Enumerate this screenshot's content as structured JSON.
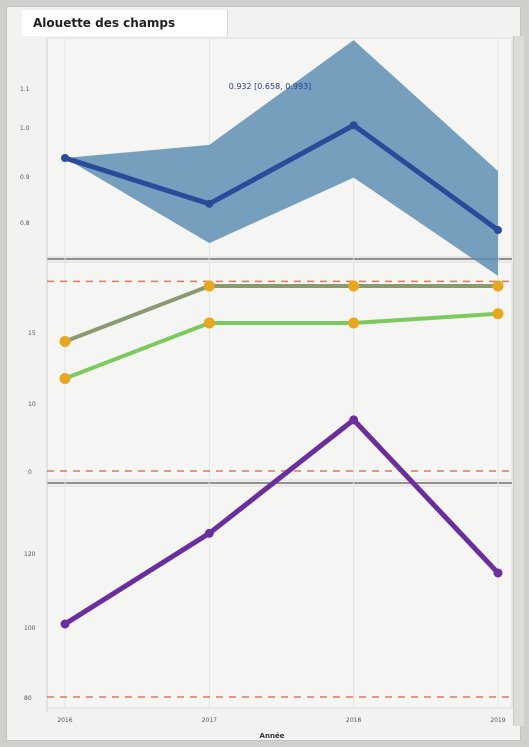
{
  "window": {
    "title": "Alouette des champs"
  },
  "chart_data": [
    {
      "type": "area",
      "title": "",
      "annotation": "0.932 [0.658, 0.993]",
      "x": [
        2016,
        2017,
        2018,
        2019
      ],
      "series": [
        {
          "values": [
            0.95,
            0.88,
            1.0,
            0.84
          ],
          "lower": [
            0.95,
            0.82,
            0.92,
            0.77
          ],
          "upper": [
            0.95,
            0.97,
            1.13,
            0.93
          ]
        }
      ],
      "yticks": [
        "1.1",
        "1.0",
        "0.9",
        "0.8"
      ],
      "colors": {
        "line": "#2a4a9a",
        "band": "#5f8fb4"
      }
    },
    {
      "type": "line",
      "x": [
        2016,
        2017,
        2018,
        2019
      ],
      "series": [
        {
          "values": [
            14,
            20,
            20,
            20
          ],
          "color": "#8a9a6e"
        },
        {
          "values": [
            10,
            16,
            16,
            17
          ],
          "color": "#7cc95e"
        }
      ],
      "yticks": [
        "15",
        "10",
        "0"
      ],
      "reference_lines": [
        20.5,
        0
      ],
      "colors": {
        "marker": "#e8a81c",
        "reference": "#e07a5a"
      }
    },
    {
      "type": "line",
      "x": [
        2016,
        2017,
        2018,
        2019
      ],
      "xlabel": "Année",
      "xticks": [
        "2016",
        "2017",
        "2018",
        "2019"
      ],
      "series": [
        {
          "values": [
            101,
            117,
            137,
            110
          ],
          "color": "#6a2ea0"
        }
      ],
      "yticks": [
        "120",
        "100",
        "80"
      ],
      "reference_lines": [
        80
      ],
      "colors": {
        "reference": "#e07a5a"
      }
    }
  ]
}
